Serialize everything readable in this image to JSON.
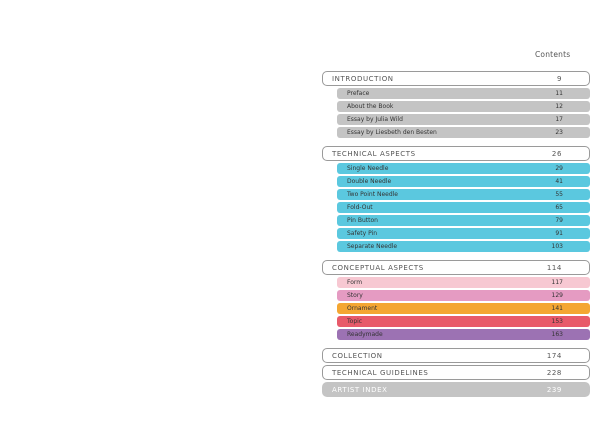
{
  "header": {
    "title": "Contents"
  },
  "colors": {
    "grey": "#c4c4c4",
    "blue": "#5bc8df",
    "pink_light": "#f7c8d2",
    "pink": "#e59bc2",
    "orange": "#f4a632",
    "red": "#e85a6a",
    "purple": "#9c72b3"
  },
  "toc": [
    {
      "title": "INTRODUCTION",
      "page": "9",
      "items": [
        {
          "title": "Preface",
          "page": "11",
          "color": "#c4c4c4"
        },
        {
          "title": "About the Book",
          "page": "12",
          "color": "#c4c4c4"
        },
        {
          "title": "Essay by Julia Wild",
          "page": "17",
          "color": "#c4c4c4"
        },
        {
          "title": "Essay by Liesbeth den Besten",
          "page": "23",
          "color": "#c4c4c4"
        }
      ]
    },
    {
      "title": "TECHNICAL ASPECTS",
      "page": "26",
      "items": [
        {
          "title": "Single Needle",
          "page": "29",
          "color": "#5bc8df"
        },
        {
          "title": "Double Needle",
          "page": "41",
          "color": "#5bc8df"
        },
        {
          "title": "Two Point Needle",
          "page": "55",
          "color": "#5bc8df"
        },
        {
          "title": "Fold-Out",
          "page": "65",
          "color": "#5bc8df"
        },
        {
          "title": "Pin Button",
          "page": "79",
          "color": "#5bc8df"
        },
        {
          "title": "Safety Pin",
          "page": "91",
          "color": "#5bc8df"
        },
        {
          "title": "Separate Needle",
          "page": "103",
          "color": "#5bc8df"
        }
      ]
    },
    {
      "title": "CONCEPTUAL ASPECTS",
      "page": "114",
      "items": [
        {
          "title": "Form",
          "page": "117",
          "color": "#f7c8d2"
        },
        {
          "title": "Story",
          "page": "129",
          "color": "#e59bc2"
        },
        {
          "title": "Ornament",
          "page": "141",
          "color": "#f4a632"
        },
        {
          "title": "Topic",
          "page": "153",
          "color": "#e85a6a"
        },
        {
          "title": "Readymade",
          "page": "163",
          "color": "#9c72b3"
        }
      ]
    },
    {
      "title": "COLLECTION",
      "page": "174",
      "items": []
    },
    {
      "title": "TECHNICAL GUIDELINES",
      "page": "228",
      "items": []
    },
    {
      "title": "ARTIST INDEX",
      "page": "239",
      "items": [],
      "filled": true
    }
  ]
}
